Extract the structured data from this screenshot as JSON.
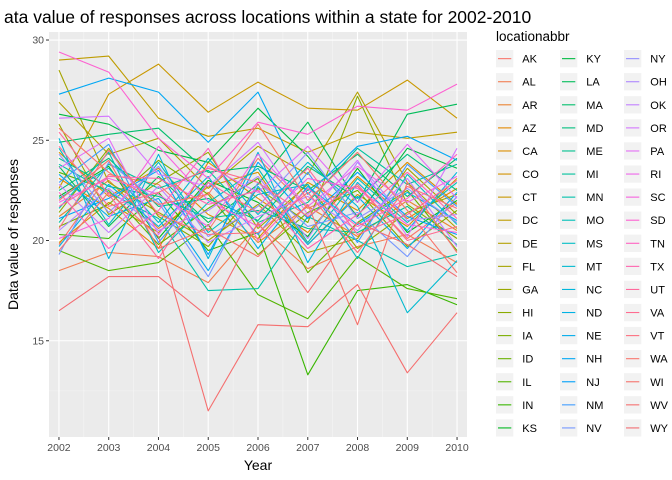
{
  "chart_data": {
    "type": "line",
    "title": "ata value of responses across locations within a state for 2002-2010",
    "xlabel": "Year",
    "ylabel": "Data value of responses",
    "x": [
      2002,
      2003,
      2004,
      2005,
      2006,
      2007,
      2008,
      2009,
      2010
    ],
    "xlim": [
      2001.8,
      2010.2
    ],
    "ylim": [
      10.2,
      30.4
    ],
    "yticks": [
      15,
      20,
      25,
      30
    ],
    "grid": true,
    "legend_title": "locationabbr",
    "legend_position": "right",
    "series": [
      {
        "name": "AK",
        "color": "#F8766D",
        "values": [
          19.8,
          23.3,
          22.8,
          20.5,
          24.1,
          21.6,
          22.7,
          20.1,
          21.9
        ]
      },
      {
        "name": "AL",
        "color": "#F27D52",
        "values": [
          18.5,
          19.4,
          19.2,
          17.9,
          20.8,
          18.6,
          19.7,
          20.3,
          18.9
        ]
      },
      {
        "name": "AR",
        "color": "#EA8331",
        "values": [
          21.2,
          23.0,
          20.6,
          22.4,
          19.9,
          21.7,
          20.2,
          22.0,
          20.5
        ]
      },
      {
        "name": "AZ",
        "color": "#E38900",
        "values": [
          23.1,
          21.6,
          19.6,
          23.9,
          22.1,
          20.4,
          23.2,
          21.1,
          22.6
        ]
      },
      {
        "name": "CA",
        "color": "#DB8E00",
        "values": [
          24.4,
          22.2,
          23.6,
          21.3,
          20.1,
          22.9,
          21.5,
          23.9,
          21.8
        ]
      },
      {
        "name": "CO",
        "color": "#D39200",
        "values": [
          19.9,
          21.9,
          20.4,
          22.7,
          23.4,
          19.8,
          22.3,
          20.7,
          23.1
        ]
      },
      {
        "name": "CT",
        "color": "#C99800",
        "values": [
          22.6,
          27.3,
          28.8,
          26.4,
          27.9,
          26.6,
          26.5,
          28.0,
          26.1
        ]
      },
      {
        "name": "DC",
        "color": "#BE9C00",
        "values": [
          29.0,
          29.2,
          26.1,
          25.2,
          25.6,
          24.4,
          25.4,
          25.1,
          25.4
        ]
      },
      {
        "name": "DE",
        "color": "#B3A000",
        "values": [
          26.9,
          24.3,
          25.1,
          22.6,
          24.7,
          23.3,
          27.4,
          22.9,
          20.6
        ]
      },
      {
        "name": "FL",
        "color": "#A6A400",
        "values": [
          28.5,
          22.9,
          21.4,
          20.0,
          21.8,
          19.4,
          20.1,
          23.6,
          21.3
        ]
      },
      {
        "name": "GA",
        "color": "#99A800",
        "values": [
          25.8,
          21.3,
          22.9,
          24.4,
          20.6,
          22.8,
          19.6,
          21.4,
          22.3
        ]
      },
      {
        "name": "HI",
        "color": "#8AAB00",
        "values": [
          21.4,
          24.6,
          21.2,
          19.7,
          22.6,
          20.9,
          27.2,
          21.8,
          20.1
        ]
      },
      {
        "name": "IA",
        "color": "#7AAE00",
        "values": [
          20.7,
          21.8,
          24.0,
          22.3,
          19.3,
          21.4,
          22.5,
          19.7,
          21.5
        ]
      },
      {
        "name": "ID",
        "color": "#68B100",
        "values": [
          23.4,
          22.5,
          19.8,
          21.6,
          23.1,
          18.4,
          20.9,
          22.5,
          19.5
        ]
      },
      {
        "name": "IL",
        "color": "#53B400",
        "values": [
          19.5,
          18.5,
          18.9,
          20.8,
          17.3,
          16.1,
          19.2,
          17.6,
          17.1
        ]
      },
      {
        "name": "IN",
        "color": "#39B600",
        "values": [
          20.3,
          20.1,
          22.4,
          19.5,
          20.4,
          13.3,
          17.5,
          17.8,
          16.8
        ]
      },
      {
        "name": "KS",
        "color": "#00B81F",
        "values": [
          22.2,
          23.7,
          20.1,
          23.0,
          21.9,
          20.2,
          23.6,
          20.4,
          22.0
        ]
      },
      {
        "name": "KY",
        "color": "#00BA42",
        "values": [
          26.3,
          25.8,
          24.5,
          23.9,
          26.6,
          24.2,
          21.2,
          24.6,
          23.6
        ]
      },
      {
        "name": "LA",
        "color": "#00BC59",
        "values": [
          23.7,
          20.7,
          23.2,
          20.9,
          22.8,
          25.9,
          21.9,
          26.3,
          26.8
        ]
      },
      {
        "name": "MA",
        "color": "#00BE6C",
        "values": [
          24.9,
          25.3,
          25.6,
          23.4,
          23.7,
          22.5,
          24.3,
          22.2,
          24.1
        ]
      },
      {
        "name": "MD",
        "color": "#00BF7D",
        "values": [
          22.5,
          24.1,
          21.7,
          22.1,
          21.0,
          23.7,
          22.1,
          24.3,
          22.5
        ]
      },
      {
        "name": "ME",
        "color": "#00C08D",
        "values": [
          24.1,
          22.7,
          22.2,
          21.1,
          21.5,
          20.6,
          20.4,
          21.7,
          19.8
        ]
      },
      {
        "name": "MI",
        "color": "#00C19C",
        "values": [
          20.9,
          23.8,
          22.6,
          23.5,
          20.9,
          21.9,
          24.6,
          22.8,
          23.8
        ]
      },
      {
        "name": "MN",
        "color": "#00C1AA",
        "values": [
          23.8,
          22.4,
          21.1,
          17.5,
          17.6,
          21.2,
          20.0,
          18.7,
          19.3
        ]
      },
      {
        "name": "MO",
        "color": "#00C0B8",
        "values": [
          21.6,
          24.4,
          19.4,
          21.9,
          23.6,
          19.9,
          23.1,
          20.9,
          22.9
        ]
      },
      {
        "name": "MS",
        "color": "#00BDC4",
        "values": [
          24.6,
          20.8,
          23.9,
          20.4,
          22.3,
          22.8,
          19.1,
          23.3,
          20.8
        ]
      },
      {
        "name": "MT",
        "color": "#00BAD0",
        "values": [
          22.1,
          23.6,
          20.9,
          24.1,
          21.3,
          23.9,
          21.7,
          16.4,
          19.0
        ]
      },
      {
        "name": "NC",
        "color": "#00B6DB",
        "values": [
          25.1,
          19.1,
          24.3,
          19.1,
          24.4,
          18.9,
          22.9,
          20.5,
          23.4
        ]
      },
      {
        "name": "ND",
        "color": "#00B2E4",
        "values": [
          19.7,
          22.8,
          20.7,
          23.2,
          19.6,
          22.7,
          20.8,
          22.4,
          21.0
        ]
      },
      {
        "name": "NE",
        "color": "#00ACEC",
        "values": [
          23.3,
          21.2,
          22.1,
          18.5,
          22.7,
          19.8,
          22.2,
          19.6,
          22.4
        ]
      },
      {
        "name": "NH",
        "color": "#00A7F4",
        "values": [
          27.3,
          28.1,
          27.4,
          24.9,
          27.4,
          22.3,
          24.7,
          25.2,
          24.0
        ]
      },
      {
        "name": "NJ",
        "color": "#00A0FA",
        "values": [
          21.1,
          22.1,
          23.5,
          19.3,
          23.9,
          21.1,
          23.4,
          21.2,
          20.3
        ]
      },
      {
        "name": "NM",
        "color": "#3F9CFF",
        "values": [
          22.9,
          24.8,
          19.9,
          22.9,
          20.3,
          23.4,
          19.9,
          23.8,
          21.7
        ]
      },
      {
        "name": "NV",
        "color": "#7597FF",
        "values": [
          19.3,
          23.9,
          21.9,
          18.2,
          22.9,
          20.7,
          21.4,
          19.2,
          22.2
        ]
      },
      {
        "name": "NY",
        "color": "#9590FF",
        "values": [
          24.3,
          21.4,
          23.7,
          20.2,
          21.7,
          24.4,
          21.1,
          22.6,
          20.9
        ]
      },
      {
        "name": "OH",
        "color": "#AE87FF",
        "values": [
          20.5,
          22.6,
          20.5,
          21.5,
          23.2,
          20.1,
          23.9,
          21.0,
          21.3
        ]
      },
      {
        "name": "OK",
        "color": "#C27FFF",
        "values": [
          22.8,
          20.4,
          22.7,
          19.9,
          21.2,
          22.2,
          20.5,
          23.1,
          19.7
        ]
      },
      {
        "name": "OR",
        "color": "#D476FF",
        "values": [
          26.1,
          26.2,
          23.3,
          22.7,
          24.9,
          21.3,
          24.0,
          20.2,
          24.6
        ]
      },
      {
        "name": "PA",
        "color": "#E36EF6",
        "values": [
          23.6,
          25.1,
          20.3,
          23.7,
          22.4,
          24.7,
          21.9,
          24.8,
          22.1
        ]
      },
      {
        "name": "RI",
        "color": "#EE67EB",
        "values": [
          21.9,
          23.1,
          22.3,
          20.7,
          24.3,
          21.7,
          23.7,
          21.9,
          23.2
        ]
      },
      {
        "name": "SC",
        "color": "#F763DF",
        "values": [
          20.1,
          21.1,
          24.7,
          22.0,
          20.7,
          23.1,
          22.6,
          20.8,
          20.4
        ]
      },
      {
        "name": "SD",
        "color": "#FD61D1",
        "values": [
          29.4,
          28.4,
          25.1,
          23.1,
          25.9,
          25.3,
          26.7,
          26.5,
          27.8
        ]
      },
      {
        "name": "TN",
        "color": "#FF62C1",
        "values": [
          22.4,
          19.6,
          21.5,
          24.6,
          20.0,
          22.6,
          20.7,
          22.1,
          24.3
        ]
      },
      {
        "name": "TX",
        "color": "#FF65AF",
        "values": [
          21.7,
          23.2,
          23.1,
          21.8,
          22.5,
          19.6,
          21.3,
          23.4,
          21.1
        ]
      },
      {
        "name": "UT",
        "color": "#FF699C",
        "values": [
          25.4,
          22.3,
          19.1,
          22.9,
          21.4,
          23.6,
          20.3,
          21.3,
          23.0
        ]
      },
      {
        "name": "VA",
        "color": "#FF6C91",
        "values": [
          24.7,
          21.7,
          22.4,
          23.6,
          22.9,
          21.2,
          22.8,
          20.0,
          20.7
        ]
      },
      {
        "name": "VT",
        "color": "#FC7080",
        "values": [
          20.6,
          24.5,
          21.3,
          20.3,
          20.4,
          22.4,
          19.4,
          22.7,
          21.6
        ]
      },
      {
        "name": "WA",
        "color": "#F8766D",
        "values": [
          25.6,
          23.4,
          21.8,
          22.3,
          25.8,
          22.0,
          24.4,
          21.5,
          18.4
        ]
      },
      {
        "name": "WI",
        "color": "#F6736C",
        "values": [
          22.0,
          24.0,
          19.6,
          20.6,
          19.2,
          21.8,
          15.8,
          22.9,
          19.4
        ]
      },
      {
        "name": "WV",
        "color": "#F56F6F",
        "values": [
          19.5,
          22.4,
          20.2,
          11.5,
          15.8,
          15.7,
          17.8,
          13.4,
          16.4
        ]
      },
      {
        "name": "WY",
        "color": "#F36C72",
        "values": [
          16.5,
          18.2,
          18.2,
          16.2,
          20.9,
          17.4,
          20.9,
          19.8,
          18.2
        ]
      }
    ]
  }
}
